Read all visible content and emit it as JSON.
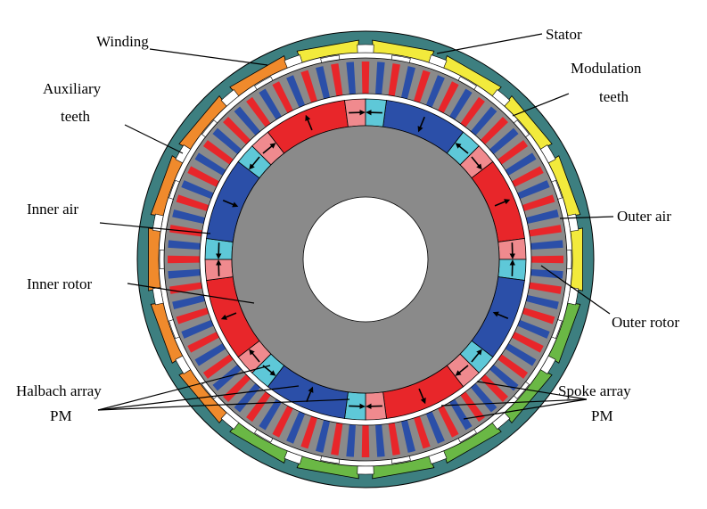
{
  "labels": [
    {
      "lines": [
        "Winding"
      ]
    },
    {
      "lines": [
        "Stator"
      ]
    },
    {
      "lines": [
        "Modulation",
        "teeth"
      ]
    },
    {
      "lines": [
        "Auxiliary",
        "teeth"
      ]
    },
    {
      "lines": [
        "Inner air"
      ]
    },
    {
      "lines": [
        "Outer air"
      ]
    },
    {
      "lines": [
        "Inner rotor"
      ]
    },
    {
      "lines": [
        "Outer rotor"
      ]
    },
    {
      "lines": [
        "Halbach array",
        "PM"
      ]
    },
    {
      "lines": [
        "Spoke array",
        "PM"
      ]
    }
  ]
}
